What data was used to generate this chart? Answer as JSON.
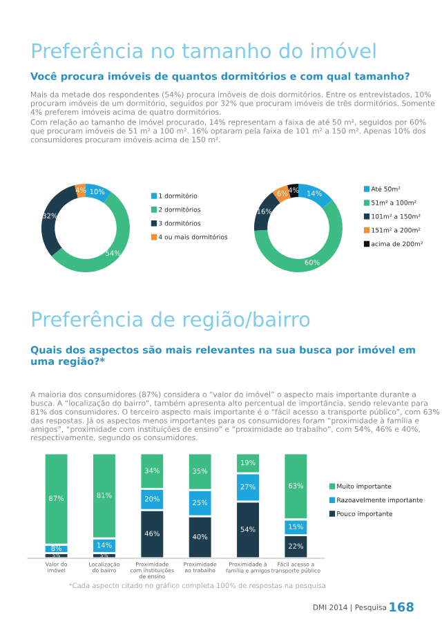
{
  "chart_data": [
    {
      "type": "donut",
      "title": "Preferência no tamanho do imóvel",
      "subtitle": "Você procura imóveis de quantos dormitórios e com qual tamanho?",
      "annotations": [
        "Mais da metade dos respondentes (54%) procura imóveis de dois dormitórios. Entre os entrevistados, 10% procuram imóveis de um dormitório, seguidos por 32% que procuram imóveis de três dormitórios. Somente 4% preferem imóveis acima de quatro dormitórios.",
        "Com relação ao tamanho de imóvel procurado, 14% representam a faixa de até 50 m², seguidos por 60% que procuram imóveis de 51 m² a 100 m². 16% optaram pela faixa de 101 m² a 150 m². Apenas 10% dos consumidores procuram imóveis acima de 150 m²."
      ],
      "categories": [
        "1 dormitório",
        "2 dormitórios",
        "3 dormitórios",
        "4 ou mais dormitórios"
      ],
      "values": [
        10,
        54,
        32,
        4
      ],
      "value_labels": [
        "10%",
        "54%",
        "32%",
        "4%"
      ],
      "colors": [
        "#1ea6dc",
        "#3dbb84",
        "#1e3d4f",
        "#f0913a"
      ],
      "legend": "right"
    },
    {
      "type": "donut",
      "categories": [
        "Até 50m²",
        "51m² a 100m²",
        "101m² a 150m²",
        "151m² a 200m²",
        "acima de 200m²"
      ],
      "values": [
        14,
        60,
        16,
        6,
        4
      ],
      "value_labels": [
        "14%",
        "60%",
        "16%",
        "6%",
        "4%"
      ],
      "colors": [
        "#1ea6dc",
        "#3dbb84",
        "#1e3d4f",
        "#f0913a",
        "#111111"
      ],
      "legend": "right"
    },
    {
      "type": "bar",
      "stacked": true,
      "title": "Preferência de região/bairro",
      "subtitle": "Quais dos aspectos são mais relevantes na sua busca por imóvel em uma região?*",
      "annotations": [
        "A maioria dos consumidores (87%) considera o “valor do imóvel” o aspecto mais importante durante a busca. A “localização do bairro”, também apresenta alto percentual de importância, sendo relevante para 81% dos consumidores. O terceiro aspecto mais importante é o “fácil acesso a transporte público”, com 63% das respostas. Já os aspectos menos importantes para os consumidores foram “proximidade à família e amigos”, “proximidade com instituições de ensino” e “proximidade ao trabalho”, com 54%, 46% e 40%, respectivamente, segundo os consumidores.",
        "*Cada aspecto citado no gráfico completa 100% de respostas na pesquisa",
        "DMI 2014 | Pesquisa",
        "168"
      ],
      "categories": [
        "Valor do\nimóvel",
        "Localização\ndo bairro",
        "Proximidade\ncom instituições\nde ensino",
        "Proximidade\nao trabalho",
        "Proximidade à\nfamília e amigos",
        "Fácil acesso a\ntransporte público"
      ],
      "series": [
        {
          "name": "Pouco importante",
          "color": "#1e3d4f",
          "values": [
            5,
            5,
            46,
            40,
            54,
            22
          ],
          "value_labels": [
            "5%",
            "5%",
            "46%",
            "40%",
            "54%",
            "22%"
          ]
        },
        {
          "name": "Razoavelmente importante",
          "color": "#1ea6dc",
          "values": [
            8,
            14,
            20,
            25,
            27,
            15
          ],
          "value_labels": [
            "8%",
            "14%",
            "20%",
            "25%",
            "27%",
            "15%"
          ]
        },
        {
          "name": "Muito importante",
          "color": "#3dbb84",
          "values": [
            87,
            81,
            34,
            35,
            19,
            63
          ],
          "value_labels": [
            "87%",
            "81%",
            "34%",
            "35%",
            "19%",
            "63%"
          ]
        }
      ],
      "ylim": [
        0,
        100
      ],
      "tick_labels": "x",
      "legend": "right"
    }
  ]
}
